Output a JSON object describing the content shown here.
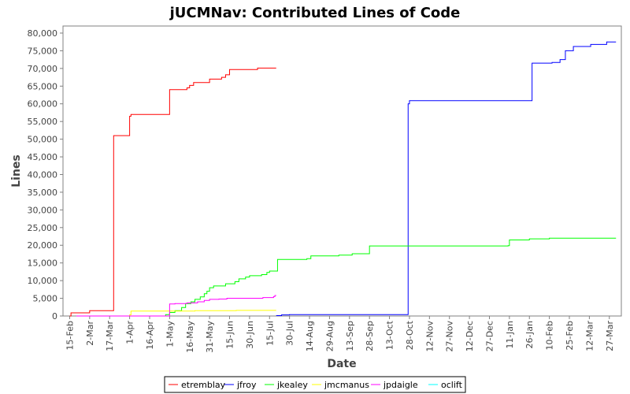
{
  "chart_data": {
    "type": "line",
    "title": "jUCMNav: Contributed Lines of Code",
    "xlabel": "Date",
    "ylabel": "Lines",
    "ylim": [
      0,
      82000
    ],
    "xlim": [
      "2005-02-10",
      "2006-04-05"
    ],
    "yticks": [
      0,
      5000,
      10000,
      15000,
      20000,
      25000,
      30000,
      35000,
      40000,
      45000,
      50000,
      55000,
      60000,
      65000,
      70000,
      75000,
      80000
    ],
    "ytick_labels": [
      "0",
      "5,000",
      "10,000",
      "15,000",
      "20,000",
      "25,000",
      "30,000",
      "35,000",
      "40,000",
      "45,000",
      "50,000",
      "55,000",
      "60,000",
      "65,000",
      "70,000",
      "75,000",
      "80,000"
    ],
    "xticks": [
      "2005-02-15",
      "2005-03-02",
      "2005-03-17",
      "2005-04-01",
      "2005-04-16",
      "2005-05-01",
      "2005-05-16",
      "2005-05-31",
      "2005-06-15",
      "2005-06-30",
      "2005-07-15",
      "2005-07-30",
      "2005-08-14",
      "2005-08-29",
      "2005-09-13",
      "2005-09-28",
      "2005-10-13",
      "2005-10-28",
      "2005-11-12",
      "2005-11-27",
      "2005-12-12",
      "2005-12-27",
      "2006-01-11",
      "2006-01-26",
      "2006-02-10",
      "2006-02-25",
      "2006-03-12",
      "2006-03-27"
    ],
    "xtick_labels": [
      "15-Feb",
      "2-Mar",
      "17-Mar",
      "1-Apr",
      "16-Apr",
      "1-May",
      "16-May",
      "31-May",
      "15-Jun",
      "30-Jun",
      "15-Jul",
      "30-Jul",
      "14-Aug",
      "29-Aug",
      "13-Sep",
      "28-Sep",
      "13-Oct",
      "28-Oct",
      "12-Nov",
      "27-Nov",
      "12-Dec",
      "27-Dec",
      "11-Jan",
      "26-Jan",
      "10-Feb",
      "25-Feb",
      "12-Mar",
      "27-Mar"
    ],
    "step": true,
    "grid": false,
    "legend_position": "bottom",
    "series": [
      {
        "name": "etremblay",
        "color": "#ff0000",
        "points": [
          [
            "2005-02-15",
            0
          ],
          [
            "2005-02-16",
            900
          ],
          [
            "2005-03-02",
            1500
          ],
          [
            "2005-03-20",
            51000
          ],
          [
            "2005-04-01",
            56500
          ],
          [
            "2005-04-02",
            57000
          ],
          [
            "2005-05-01",
            64000
          ],
          [
            "2005-05-14",
            64500
          ],
          [
            "2005-05-16",
            65200
          ],
          [
            "2005-05-19",
            66000
          ],
          [
            "2005-05-31",
            67000
          ],
          [
            "2005-06-09",
            67500
          ],
          [
            "2005-06-12",
            68200
          ],
          [
            "2005-06-15",
            69700
          ],
          [
            "2005-07-06",
            70100
          ],
          [
            "2005-07-20",
            70100
          ]
        ]
      },
      {
        "name": "jfroy",
        "color": "#0000ff",
        "points": [
          [
            "2005-07-20",
            100
          ],
          [
            "2005-07-24",
            300
          ],
          [
            "2005-07-30",
            400
          ],
          [
            "2005-10-26",
            400
          ],
          [
            "2005-10-27",
            60000
          ],
          [
            "2005-10-28",
            60900
          ],
          [
            "2006-01-28",
            71500
          ],
          [
            "2006-02-12",
            71700
          ],
          [
            "2006-02-18",
            72500
          ],
          [
            "2006-02-22",
            75000
          ],
          [
            "2006-02-28",
            76200
          ],
          [
            "2006-03-13",
            76800
          ],
          [
            "2006-03-25",
            77500
          ],
          [
            "2006-04-01",
            77500
          ]
        ]
      },
      {
        "name": "jkealey",
        "color": "#00ff00",
        "points": [
          [
            "2005-04-24",
            0
          ],
          [
            "2005-04-28",
            400
          ],
          [
            "2005-05-01",
            1000
          ],
          [
            "2005-05-05",
            1500
          ],
          [
            "2005-05-10",
            2400
          ],
          [
            "2005-05-13",
            3500
          ],
          [
            "2005-05-17",
            4000
          ],
          [
            "2005-05-20",
            4700
          ],
          [
            "2005-05-24",
            5400
          ],
          [
            "2005-05-27",
            6300
          ],
          [
            "2005-05-29",
            7000
          ],
          [
            "2005-05-31",
            8000
          ],
          [
            "2005-06-03",
            8500
          ],
          [
            "2005-06-12",
            9100
          ],
          [
            "2005-06-19",
            9700
          ],
          [
            "2005-06-22",
            10500
          ],
          [
            "2005-06-27",
            11000
          ],
          [
            "2005-06-30",
            11400
          ],
          [
            "2005-07-09",
            11700
          ],
          [
            "2005-07-13",
            12300
          ],
          [
            "2005-07-15",
            12700
          ],
          [
            "2005-07-20",
            12700
          ],
          [
            "2005-07-21",
            16000
          ],
          [
            "2005-08-12",
            16200
          ],
          [
            "2005-08-15",
            17000
          ],
          [
            "2005-09-05",
            17200
          ],
          [
            "2005-09-15",
            17600
          ],
          [
            "2005-09-28",
            19800
          ],
          [
            "2006-01-10",
            19900
          ],
          [
            "2006-01-11",
            21500
          ],
          [
            "2006-01-26",
            21800
          ],
          [
            "2006-02-10",
            22000
          ],
          [
            "2006-04-01",
            22000
          ]
        ]
      },
      {
        "name": "jmcmanus",
        "color": "#ffff00",
        "points": [
          [
            "2005-02-20",
            0
          ],
          [
            "2005-04-01",
            300
          ],
          [
            "2005-04-02",
            1400
          ],
          [
            "2005-05-20",
            1500
          ],
          [
            "2005-06-20",
            1600
          ],
          [
            "2005-07-20",
            1600
          ]
        ]
      },
      {
        "name": "jpdaigle",
        "color": "#ff00ff",
        "points": [
          [
            "2005-02-20",
            0
          ],
          [
            "2005-04-30",
            0
          ],
          [
            "2005-05-01",
            3400
          ],
          [
            "2005-05-05",
            3500
          ],
          [
            "2005-05-14",
            3700
          ],
          [
            "2005-05-22",
            4000
          ],
          [
            "2005-05-27",
            4400
          ],
          [
            "2005-05-31",
            4700
          ],
          [
            "2005-06-07",
            4800
          ],
          [
            "2005-06-13",
            5000
          ],
          [
            "2005-06-30",
            5000
          ],
          [
            "2005-07-10",
            5200
          ],
          [
            "2005-07-18",
            5500
          ],
          [
            "2005-07-19",
            5800
          ],
          [
            "2005-07-20",
            5800
          ]
        ]
      },
      {
        "name": "oclift",
        "color": "#00ffff",
        "points": []
      }
    ]
  }
}
